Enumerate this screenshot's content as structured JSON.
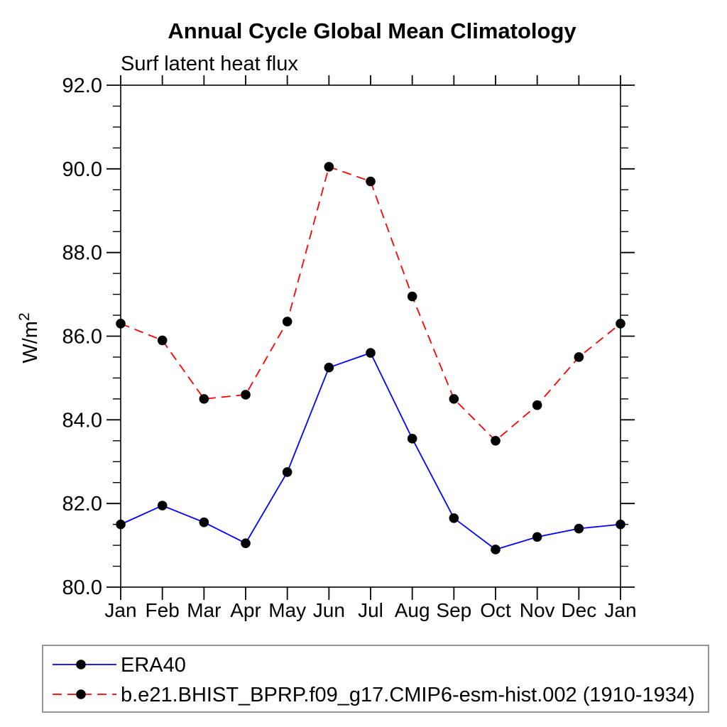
{
  "title": "Annual Cycle Global Mean Climatology",
  "subtitle": "Surf latent heat flux",
  "y_axis": {
    "label": "W/m²",
    "label_base": "W/m",
    "label_exponent": "2"
  },
  "chart_data": {
    "type": "line",
    "title": "Annual Cycle Global Mean Climatology",
    "subtitle": "Surf latent heat flux",
    "ylabel": "W/m²",
    "categories": [
      "Jan",
      "Feb",
      "Mar",
      "Apr",
      "May",
      "Jun",
      "Jul",
      "Aug",
      "Sep",
      "Oct",
      "Nov",
      "Dec",
      "Jan"
    ],
    "series": [
      {
        "name": "ERA40",
        "line_color": "#0000ff",
        "line_style": "solid",
        "marker": "filled-circle",
        "marker_color": "#000000",
        "values": [
          81.5,
          81.95,
          81.55,
          81.05,
          82.75,
          85.25,
          85.6,
          83.55,
          81.65,
          80.9,
          81.2,
          81.4,
          81.5
        ]
      },
      {
        "name": "b.e21.BHIST_BPRP.f09_g17.CMIP6-esm-hist.002 (1910-1934)",
        "line_color": "#ff0000",
        "line_style": "dashed",
        "marker": "filled-circle",
        "marker_color": "#000000",
        "values": [
          86.3,
          85.9,
          84.5,
          84.6,
          86.35,
          90.05,
          89.7,
          86.95,
          84.5,
          83.5,
          84.35,
          85.5,
          86.3
        ]
      }
    ],
    "ylim": [
      80.0,
      92.0
    ],
    "y_major_tick_step": 2.0,
    "y_minor_tick_step": 0.5,
    "y_tick_labels": [
      "80.0",
      "82.0",
      "84.0",
      "86.0",
      "88.0",
      "90.0",
      "92.0"
    ],
    "x_tick_every_category": true,
    "grid": false,
    "legend_position": "bottom-left-box"
  },
  "colors": {
    "background": "#ffffff",
    "axis": "#000000",
    "marker": "#000000",
    "legend_border": "#707070",
    "series_blue": "#0000ff",
    "series_red": "#ff0000"
  }
}
